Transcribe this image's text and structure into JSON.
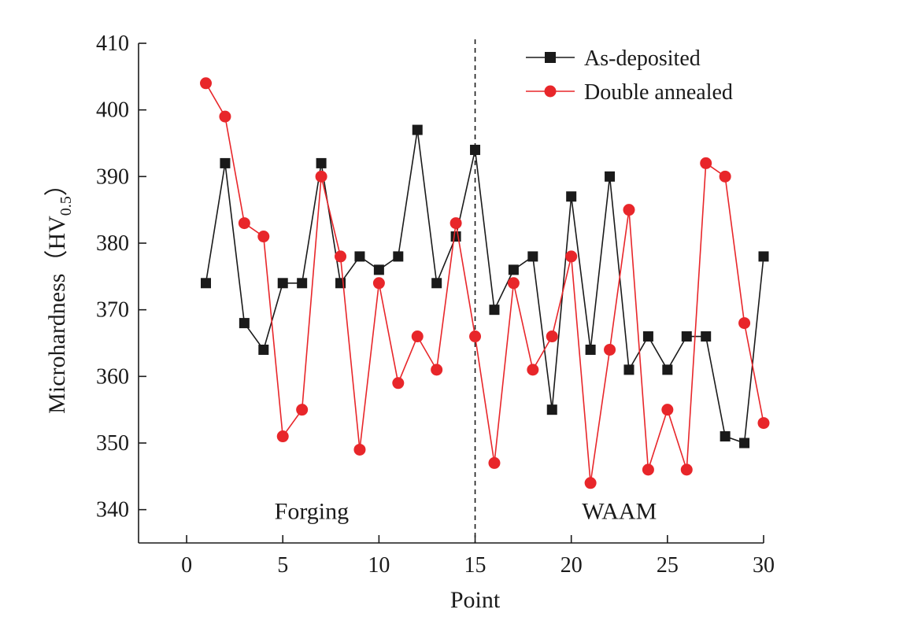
{
  "chart_data": {
    "type": "line",
    "xlabel": "Point",
    "ylabel": "Microhardness（HV",
    "ylabel_sub": "0.5",
    "ylabel_close": "）",
    "xlim": [
      -2.5,
      30
    ],
    "ylim": [
      335,
      410
    ],
    "xticks": [
      0,
      5,
      10,
      15,
      20,
      25,
      30
    ],
    "yticks": [
      340,
      350,
      360,
      370,
      380,
      390,
      400,
      410
    ],
    "grid": false,
    "legend_position": "top-right",
    "x": [
      1,
      2,
      3,
      4,
      5,
      6,
      7,
      8,
      9,
      10,
      11,
      12,
      13,
      14,
      15,
      16,
      17,
      18,
      19,
      20,
      21,
      22,
      23,
      24,
      25,
      26,
      27,
      28,
      29,
      30
    ],
    "series": [
      {
        "name": "As-deposited",
        "color": "#1a1a1a",
        "marker": "square",
        "values": [
          374,
          392,
          368,
          364,
          374,
          374,
          392,
          374,
          378,
          376,
          378,
          397,
          374,
          381,
          394,
          370,
          376,
          378,
          355,
          387,
          364,
          390,
          361,
          366,
          361,
          366,
          366,
          351,
          350,
          378
        ]
      },
      {
        "name": "Double annealed",
        "color": "#e8262a",
        "marker": "circle",
        "values": [
          404,
          399,
          383,
          381,
          351,
          355,
          390,
          378,
          349,
          374,
          359,
          366,
          361,
          383,
          366,
          347,
          374,
          361,
          366,
          378,
          344,
          364,
          385,
          346,
          355,
          346,
          392,
          390,
          368,
          353
        ]
      }
    ],
    "annotations": [
      {
        "text": "Forging",
        "x": 6.5,
        "y": 340
      },
      {
        "text": "WAAM",
        "x": 22.5,
        "y": 340
      }
    ],
    "divider": {
      "x": 15,
      "style": "dashed"
    }
  }
}
